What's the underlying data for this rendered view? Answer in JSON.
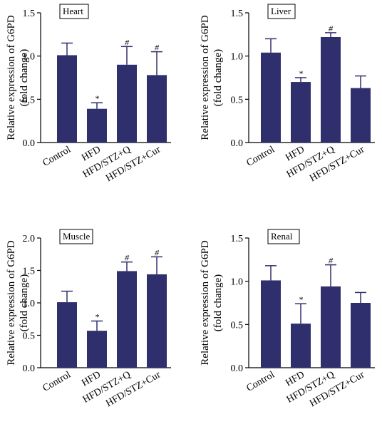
{
  "colors": {
    "bar": "#302f6e",
    "axis": "#000000",
    "box_border": "#000000"
  },
  "chart_data": [
    {
      "type": "bar",
      "panel_label": "Heart",
      "categories": [
        "Control",
        "HFD",
        "HFD/STZ+Q",
        "HFD/STZ+Cur"
      ],
      "values": [
        1.01,
        0.39,
        0.9,
        0.78
      ],
      "errors": [
        0.14,
        0.07,
        0.21,
        0.27
      ],
      "markers": [
        "",
        "*",
        "#",
        "#"
      ],
      "ylabel": "Relative expression of G6PD",
      "ylabel2": "(fold change)",
      "ylim": [
        0,
        1.5
      ],
      "yticks": [
        0.0,
        0.5,
        1.0,
        1.5
      ],
      "yticklabels": [
        "0.0",
        "0.5",
        "1.0",
        "1.5"
      ],
      "grid": false
    },
    {
      "type": "bar",
      "panel_label": "Liver",
      "categories": [
        "Control",
        "HFD",
        "HFD/STZ+Q",
        "HFD/STZ+Cur"
      ],
      "values": [
        1.04,
        0.7,
        1.22,
        0.63
      ],
      "errors": [
        0.16,
        0.05,
        0.05,
        0.14
      ],
      "markers": [
        "",
        "*",
        "#",
        ""
      ],
      "ylabel": "Relative expression of G6PD",
      "ylabel2": "(fold change)",
      "ylim": [
        0,
        1.5
      ],
      "yticks": [
        0.0,
        0.5,
        1.0,
        1.5
      ],
      "yticklabels": [
        "0.0",
        "0.5",
        "1.0",
        "1.5"
      ],
      "grid": false
    },
    {
      "type": "bar",
      "panel_label": "Muscle",
      "categories": [
        "Control",
        "HFD",
        "HFD/STZ+Q",
        "HFD/STZ+Cur"
      ],
      "values": [
        1.01,
        0.57,
        1.49,
        1.44
      ],
      "errors": [
        0.17,
        0.15,
        0.14,
        0.27
      ],
      "markers": [
        "",
        "*",
        "#",
        "#"
      ],
      "ylabel": "Relative expression of G6PD",
      "ylabel2": "(fold change)",
      "ylim": [
        0,
        2.0
      ],
      "yticks": [
        0.0,
        0.5,
        1.0,
        1.5,
        2.0
      ],
      "yticklabels": [
        "0.0",
        "0.5",
        "1.0",
        "1.5",
        "2.0"
      ],
      "grid": false
    },
    {
      "type": "bar",
      "panel_label": "Renal",
      "categories": [
        "Control",
        "HFD",
        "HFD/STZ+Q",
        "HFD/STZ+Cur"
      ],
      "values": [
        1.01,
        0.51,
        0.94,
        0.75
      ],
      "errors": [
        0.17,
        0.23,
        0.25,
        0.12
      ],
      "markers": [
        "",
        "*",
        "#",
        ""
      ],
      "ylabel": "Relative expression of G6PD",
      "ylabel2": "(fold change)",
      "ylim": [
        0,
        1.5
      ],
      "yticks": [
        0.0,
        0.5,
        1.0,
        1.5
      ],
      "yticklabels": [
        "0.0",
        "0.5",
        "1.0",
        "1.5"
      ],
      "grid": false
    }
  ]
}
